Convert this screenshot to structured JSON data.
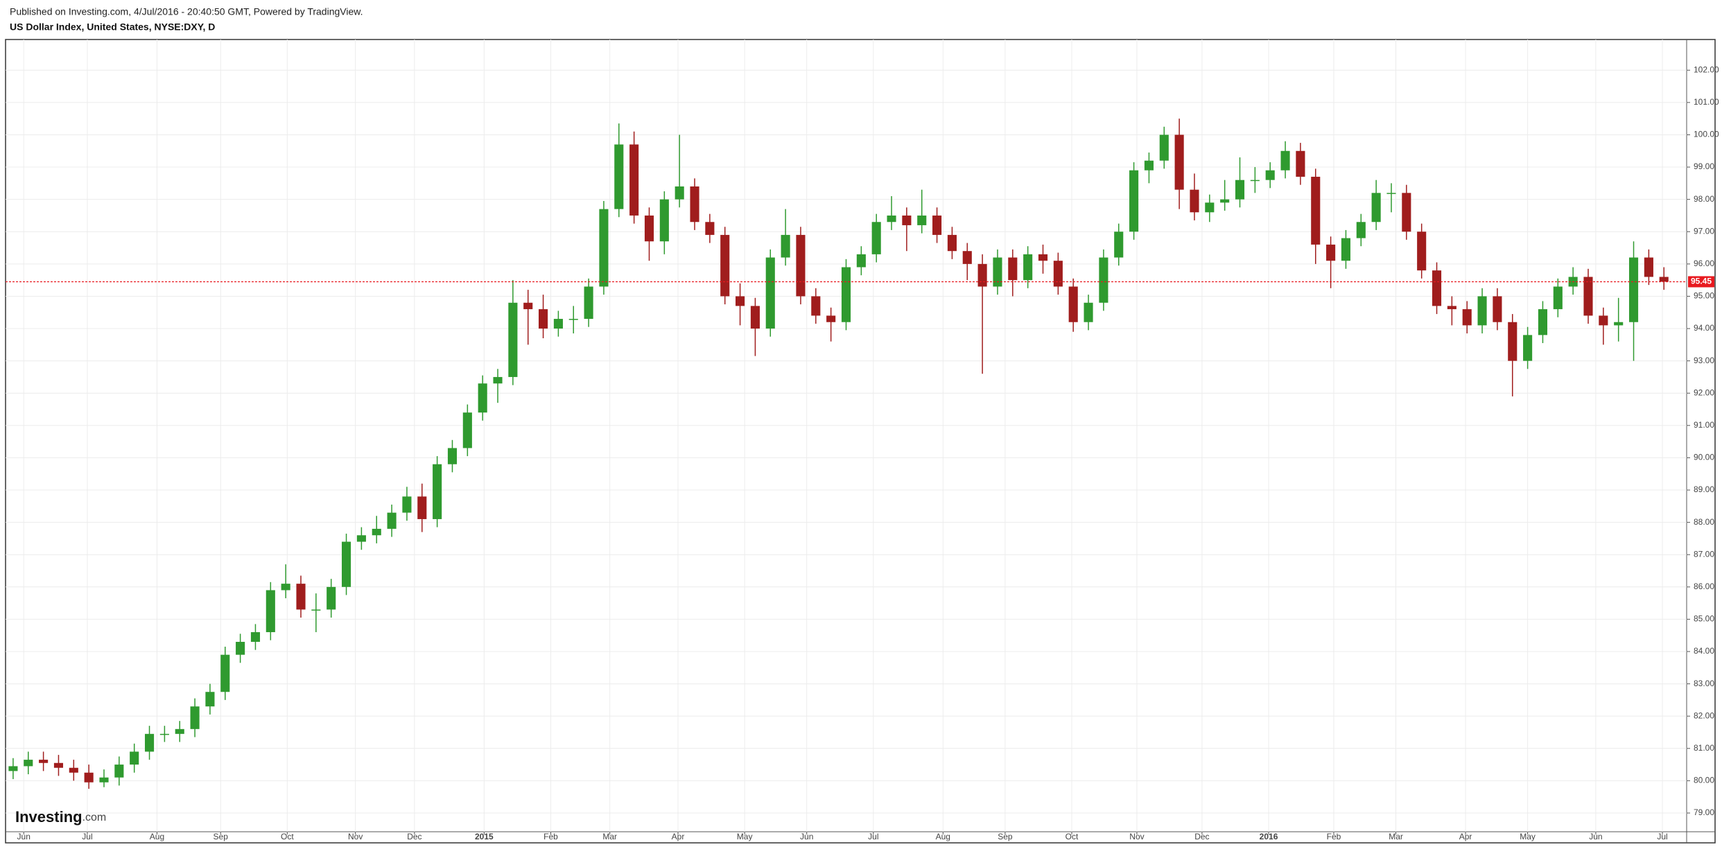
{
  "header": "Published on Investing.com, 4/Jul/2016 - 20:40:50 GMT, Powered by TradingView.",
  "chart_data": {
    "type": "candlestick",
    "title": "US Dollar Index, United States, NYSE:DXY, D",
    "categories": [
      null,
      null,
      null,
      null,
      null,
      null,
      null,
      null,
      null,
      null,
      null,
      null,
      null,
      null,
      null,
      null,
      null,
      null,
      null,
      null,
      null,
      null,
      null,
      null,
      null,
      null,
      null,
      null,
      null,
      null,
      null,
      null,
      null,
      null,
      null,
      null,
      null,
      null,
      null,
      null,
      null,
      null,
      null,
      null,
      null,
      null,
      null,
      null,
      null,
      null,
      null,
      null,
      null,
      null,
      null,
      null,
      null,
      null,
      null,
      null,
      null,
      null,
      null,
      null,
      null,
      null,
      null,
      null,
      null,
      null,
      null,
      null,
      null,
      null,
      null,
      null,
      null,
      null,
      null,
      null,
      null,
      null,
      null,
      null,
      null,
      null,
      null,
      null,
      null,
      null,
      null,
      null,
      null,
      null,
      null,
      null,
      null,
      null,
      null,
      null,
      null,
      null,
      null,
      null,
      null,
      null,
      null,
      null,
      null,
      null
    ],
    "open": [
      80.3,
      80.45,
      80.65,
      80.55,
      80.4,
      80.25,
      79.95,
      80.1,
      80.5,
      80.9,
      81.45,
      81.45,
      81.6,
      82.3,
      82.75,
      83.9,
      84.3,
      84.6,
      85.9,
      86.1,
      85.3,
      85.3,
      86.0,
      87.4,
      87.6,
      87.8,
      88.3,
      88.8,
      88.1,
      89.8,
      90.3,
      91.4,
      92.3,
      92.5,
      94.8,
      94.6,
      94.0,
      94.3,
      94.3,
      95.3,
      97.7,
      99.7,
      97.5,
      96.7,
      98.0,
      98.4,
      97.3,
      96.9,
      95.0,
      94.7,
      94.0,
      96.2,
      96.9,
      95.0,
      94.4,
      94.2,
      95.9,
      96.3,
      97.3,
      97.5,
      97.2,
      97.5,
      96.9,
      96.4,
      96.0,
      95.3,
      96.2,
      95.5,
      96.3,
      96.1,
      95.3,
      94.2,
      94.8,
      96.2,
      97.0,
      98.9,
      99.2,
      100.0,
      98.3,
      97.6,
      97.9,
      98.0,
      98.6,
      98.6,
      98.9,
      99.5,
      98.7,
      96.6,
      96.1,
      96.8,
      97.3,
      98.2,
      98.2,
      97.0,
      95.8,
      94.7,
      94.6,
      94.1,
      95.0,
      94.2,
      93.0,
      93.8,
      94.6,
      95.3,
      95.6,
      94.4,
      94.1,
      94.2,
      96.2,
      95.6
    ],
    "high": [
      80.7,
      80.9,
      80.9,
      80.8,
      80.65,
      80.5,
      80.35,
      80.75,
      81.15,
      81.7,
      81.7,
      81.85,
      82.55,
      83.0,
      84.15,
      84.55,
      84.85,
      86.15,
      86.7,
      86.35,
      85.8,
      86.25,
      87.65,
      87.85,
      88.2,
      88.55,
      89.1,
      89.2,
      90.05,
      90.55,
      91.65,
      92.55,
      92.75,
      95.5,
      95.2,
      95.05,
      94.55,
      94.7,
      95.55,
      97.95,
      100.35,
      100.1,
      97.75,
      98.25,
      100.0,
      98.65,
      97.55,
      97.15,
      95.4,
      94.95,
      96.45,
      97.7,
      97.15,
      95.25,
      94.65,
      96.15,
      96.55,
      97.55,
      98.1,
      97.75,
      98.3,
      97.75,
      97.15,
      96.65,
      96.3,
      96.45,
      96.45,
      96.55,
      96.6,
      96.35,
      95.55,
      95.05,
      96.45,
      97.25,
      99.15,
      99.45,
      100.25,
      100.5,
      98.8,
      98.15,
      98.6,
      99.3,
      99.0,
      99.15,
      99.8,
      99.75,
      98.95,
      96.85,
      97.05,
      97.55,
      98.6,
      98.5,
      98.45,
      97.25,
      96.05,
      95.0,
      94.85,
      95.25,
      95.25,
      94.45,
      94.05,
      94.85,
      95.55,
      95.9,
      95.85,
      94.65,
      94.95,
      96.7,
      96.45,
      95.9
    ],
    "low": [
      80.05,
      80.2,
      80.3,
      80.15,
      80.0,
      79.75,
      79.8,
      79.85,
      80.25,
      80.65,
      81.2,
      81.2,
      81.35,
      82.05,
      82.5,
      83.65,
      84.05,
      84.35,
      85.65,
      85.05,
      84.6,
      85.05,
      85.75,
      87.15,
      87.35,
      87.55,
      88.05,
      87.7,
      87.85,
      89.55,
      90.05,
      91.15,
      91.7,
      92.25,
      93.5,
      93.7,
      93.75,
      93.85,
      94.05,
      95.05,
      97.45,
      97.25,
      96.1,
      96.3,
      97.75,
      97.05,
      96.65,
      94.75,
      94.1,
      93.15,
      93.75,
      95.95,
      94.75,
      94.15,
      93.6,
      93.95,
      95.65,
      96.05,
      97.05,
      96.4,
      96.95,
      96.65,
      96.15,
      95.5,
      92.6,
      95.05,
      95.0,
      95.25,
      95.7,
      95.05,
      93.9,
      93.95,
      94.55,
      95.95,
      96.75,
      98.5,
      98.95,
      97.7,
      97.35,
      97.3,
      97.65,
      97.75,
      98.2,
      98.35,
      98.65,
      98.45,
      96.0,
      95.25,
      95.85,
      96.55,
      97.05,
      97.6,
      96.75,
      95.55,
      94.45,
      94.1,
      93.85,
      93.85,
      93.95,
      91.9,
      92.75,
      93.55,
      94.35,
      95.05,
      94.15,
      93.5,
      93.6,
      93.0,
      95.35,
      95.2
    ],
    "close": [
      80.45,
      80.65,
      80.55,
      80.4,
      80.25,
      79.95,
      80.1,
      80.5,
      80.9,
      81.45,
      81.45,
      81.6,
      82.3,
      82.75,
      83.9,
      84.3,
      84.6,
      85.9,
      86.1,
      85.3,
      85.3,
      86.0,
      87.4,
      87.6,
      87.8,
      88.3,
      88.8,
      88.1,
      89.8,
      90.3,
      91.4,
      92.3,
      92.5,
      94.8,
      94.6,
      94.0,
      94.3,
      94.3,
      95.3,
      97.7,
      99.7,
      97.5,
      96.7,
      98.0,
      98.4,
      97.3,
      96.9,
      95.0,
      94.7,
      94.0,
      96.2,
      96.9,
      95.0,
      94.4,
      94.2,
      95.9,
      96.3,
      97.3,
      97.5,
      97.2,
      97.5,
      96.9,
      96.4,
      96.0,
      95.3,
      96.2,
      95.5,
      96.3,
      96.1,
      95.3,
      94.2,
      94.8,
      96.2,
      97.0,
      98.9,
      99.2,
      100.0,
      98.3,
      97.6,
      97.9,
      98.0,
      98.6,
      98.6,
      98.9,
      99.5,
      98.7,
      96.6,
      96.1,
      96.8,
      97.3,
      98.2,
      98.2,
      97.0,
      95.8,
      94.7,
      94.6,
      94.1,
      95.0,
      94.2,
      93.0,
      93.8,
      94.6,
      95.3,
      95.6,
      94.4,
      94.1,
      94.2,
      96.2,
      95.6,
      95.45
    ],
    "up_color": "#2f9a2f",
    "down_color": "#a01d1d",
    "last_line_color": "#e8191f",
    "xlim": [
      -0.5,
      110.5
    ],
    "xticks": [
      {
        "value": 0.7,
        "label": "Jun"
      },
      {
        "value": 4.9,
        "label": "Jul"
      },
      {
        "value": 9.5,
        "label": "Aug"
      },
      {
        "value": 13.7,
        "label": "Sep"
      },
      {
        "value": 18.1,
        "label": "Oct"
      },
      {
        "value": 22.6,
        "label": "Nov"
      },
      {
        "value": 26.5,
        "label": "Dec"
      },
      {
        "value": 31.1,
        "label": "2015"
      },
      {
        "value": 35.5,
        "label": "Feb"
      },
      {
        "value": 39.4,
        "label": "Mar"
      },
      {
        "value": 43.9,
        "label": "Apr"
      },
      {
        "value": 48.3,
        "label": "May"
      },
      {
        "value": 52.4,
        "label": "Jun"
      },
      {
        "value": 56.8,
        "label": "Jul"
      },
      {
        "value": 61.4,
        "label": "Aug"
      },
      {
        "value": 65.5,
        "label": "Sep"
      },
      {
        "value": 69.9,
        "label": "Oct"
      },
      {
        "value": 74.2,
        "label": "Nov"
      },
      {
        "value": 78.5,
        "label": "Dec"
      },
      {
        "value": 82.9,
        "label": "2016"
      },
      {
        "value": 87.2,
        "label": "Feb"
      },
      {
        "value": 91.3,
        "label": "Mar"
      },
      {
        "value": 95.9,
        "label": "Apr"
      },
      {
        "value": 100.0,
        "label": "May"
      },
      {
        "value": 104.5,
        "label": "Jun"
      },
      {
        "value": 108.9,
        "label": "Jul"
      }
    ],
    "ylim": [
      78.42,
      102.95
    ],
    "yticks": [
      {
        "value": 79,
        "label": "79.00"
      },
      {
        "value": 80,
        "label": "80.00"
      },
      {
        "value": 81,
        "label": "81.00"
      },
      {
        "value": 82,
        "label": "82.00"
      },
      {
        "value": 83,
        "label": "83.00"
      },
      {
        "value": 84,
        "label": "84.00"
      },
      {
        "value": 85,
        "label": "85.00"
      },
      {
        "value": 86,
        "label": "86.00"
      },
      {
        "value": 87,
        "label": "87.00"
      },
      {
        "value": 88,
        "label": "88.00"
      },
      {
        "value": 89,
        "label": "89.00"
      },
      {
        "value": 90,
        "label": "90.00"
      },
      {
        "value": 91,
        "label": "91.00"
      },
      {
        "value": 92,
        "label": "92.00"
      },
      {
        "value": 93,
        "label": "93.00"
      },
      {
        "value": 94,
        "label": "94.00"
      },
      {
        "value": 95,
        "label": "95.00"
      },
      {
        "value": 96,
        "label": "96.00"
      },
      {
        "value": 97,
        "label": "97.00"
      },
      {
        "value": 98,
        "label": "98.00"
      },
      {
        "value": 99,
        "label": "99.00"
      },
      {
        "value": 100,
        "label": "100.00"
      },
      {
        "value": 101,
        "label": "101.00"
      },
      {
        "value": 102,
        "label": "102.00"
      }
    ],
    "grid": true
  },
  "watermark": [
    "Investing",
    ".com"
  ]
}
